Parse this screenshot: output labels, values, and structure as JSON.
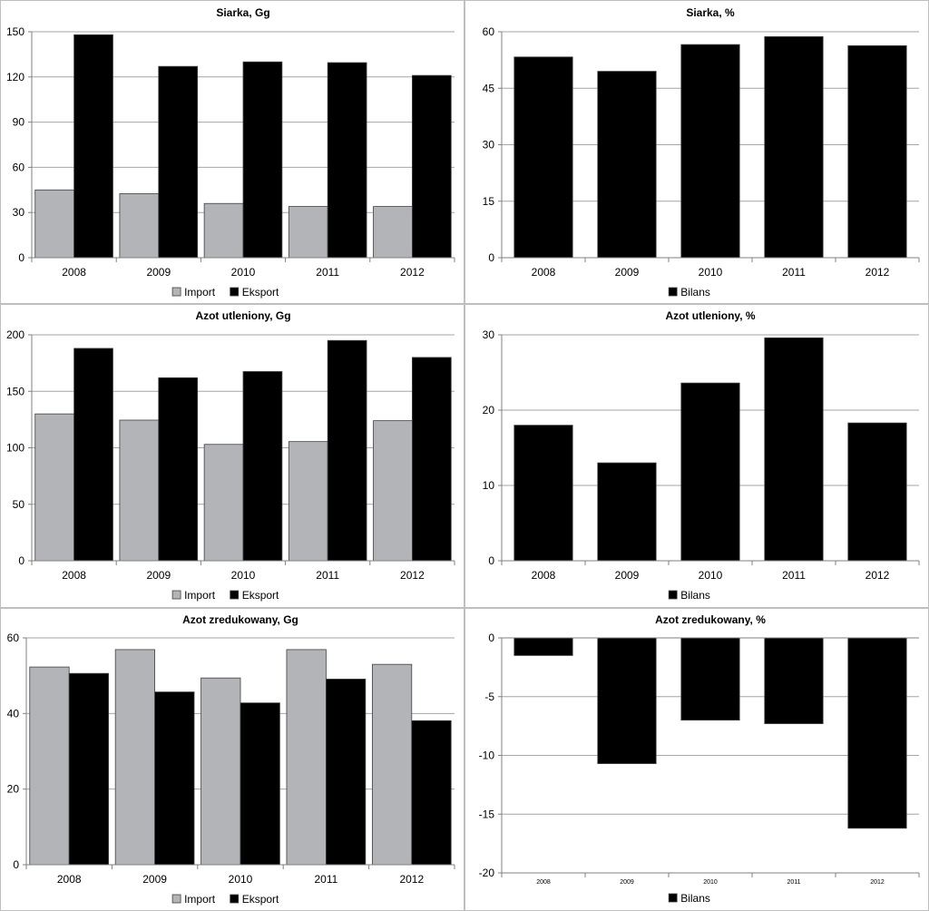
{
  "chart_data": [
    {
      "type": "bar",
      "title": "Siarka, Gg",
      "categories": [
        "2008",
        "2009",
        "2010",
        "2011",
        "2012"
      ],
      "series": [
        {
          "name": "Import",
          "values": [
            45,
            42.5,
            36,
            34,
            34
          ],
          "color": "#b2b4b7"
        },
        {
          "name": "Eksport",
          "values": [
            148,
            127,
            130,
            129.5,
            121
          ],
          "color": "#000000"
        }
      ],
      "ylim": [
        0,
        150
      ],
      "yticks": [
        "0",
        "30",
        "60",
        "90",
        "120",
        "150"
      ],
      "grid": true,
      "legend": "bottom"
    },
    {
      "type": "bar",
      "title": "Siarka, %",
      "categories": [
        "2008",
        "2009",
        "2010",
        "2011",
        "2012"
      ],
      "series": [
        {
          "name": "Bilans",
          "values": [
            53.3,
            49.5,
            56.6,
            58.7,
            56.3
          ],
          "color": "#000000"
        }
      ],
      "ylim": [
        0,
        60
      ],
      "yticks": [
        "0",
        "15",
        "30",
        "45",
        "60"
      ],
      "grid": true,
      "legend": "bottom"
    },
    {
      "type": "bar",
      "title": "Azot utleniony, Gg",
      "categories": [
        "2008",
        "2009",
        "2010",
        "2011",
        "2012"
      ],
      "series": [
        {
          "name": "Import",
          "values": [
            130,
            124.5,
            103,
            105.5,
            124
          ],
          "color": "#b2b4b7"
        },
        {
          "name": "Eksport",
          "values": [
            188,
            162,
            167.5,
            195,
            180
          ],
          "color": "#000000"
        }
      ],
      "ylim": [
        0,
        200
      ],
      "yticks": [
        "0",
        "50",
        "100",
        "150",
        "200"
      ],
      "grid": true,
      "legend": "bottom"
    },
    {
      "type": "bar",
      "title": "Azot utleniony, %",
      "categories": [
        "2008",
        "2009",
        "2010",
        "2011",
        "2012"
      ],
      "series": [
        {
          "name": "Bilans",
          "values": [
            18,
            13,
            23.6,
            29.6,
            18.3
          ],
          "color": "#000000"
        }
      ],
      "ylim": [
        0,
        30
      ],
      "yticks": [
        "0",
        "10",
        "20",
        "30"
      ],
      "grid": true,
      "legend": "bottom"
    },
    {
      "type": "bar",
      "title": "Azot zredukowany, Gg",
      "categories": [
        "2008",
        "2009",
        "2010",
        "2011",
        "2012"
      ],
      "series": [
        {
          "name": "Import",
          "values": [
            52.3,
            56.9,
            49.4,
            56.9,
            53
          ],
          "color": "#b2b4b7"
        },
        {
          "name": "Eksport",
          "values": [
            50.6,
            45.7,
            42.8,
            49.1,
            38.1
          ],
          "color": "#000000"
        }
      ],
      "ylim": [
        0,
        60
      ],
      "yticks": [
        "0",
        "20",
        "40",
        "60"
      ],
      "grid": true,
      "legend": "bottom"
    },
    {
      "type": "bar",
      "title": "Azot zredukowany, %",
      "categories": [
        "2008",
        "2009",
        "2010",
        "2011",
        "2012"
      ],
      "series": [
        {
          "name": "Bilans",
          "values": [
            -1.5,
            -10.7,
            -7,
            -7.3,
            -16.2
          ],
          "color": "#000000"
        }
      ],
      "ylim": [
        -20,
        0
      ],
      "yticks": [
        "0",
        "-5",
        "-10",
        "-15",
        "-20"
      ],
      "grid": true,
      "legend": "bottom"
    }
  ]
}
